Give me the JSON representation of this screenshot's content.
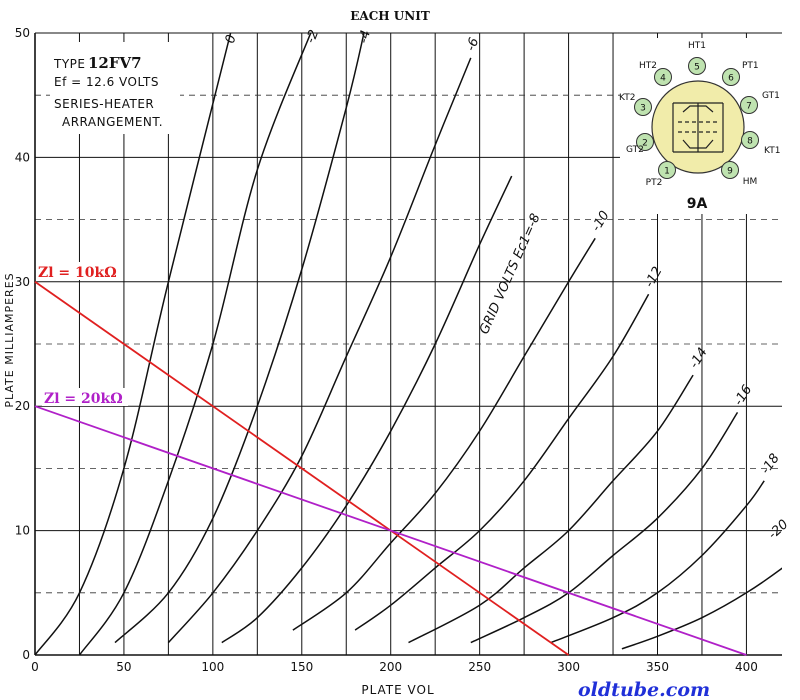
{
  "chart_data": {
    "type": "line",
    "title": "EACH UNIT",
    "xlabel": "PLATE VOL",
    "ylabel": "PLATE MILLIAMPERES",
    "xlim": [
      0,
      400
    ],
    "ylim": [
      0,
      50
    ],
    "xticks": [
      0,
      50,
      100,
      150,
      200,
      250,
      300,
      350,
      400
    ],
    "yticks": [
      0,
      10,
      20,
      30,
      40,
      50
    ],
    "grid": true,
    "series_caption": "GRID VOLTS Ec1=-8",
    "series": [
      {
        "label": "0",
        "points": [
          [
            0,
            0
          ],
          [
            25,
            5
          ],
          [
            50,
            15
          ],
          [
            75,
            30
          ],
          [
            110,
            50
          ]
        ]
      },
      {
        "label": "-2",
        "points": [
          [
            25,
            0
          ],
          [
            50,
            5
          ],
          [
            75,
            14
          ],
          [
            100,
            25
          ],
          [
            125,
            39
          ],
          [
            155,
            50
          ]
        ]
      },
      {
        "label": "-4",
        "points": [
          [
            45,
            1
          ],
          [
            75,
            5
          ],
          [
            100,
            11
          ],
          [
            125,
            20
          ],
          [
            150,
            31
          ],
          [
            175,
            44
          ],
          [
            185,
            50
          ]
        ]
      },
      {
        "label": "-6",
        "points": [
          [
            75,
            1
          ],
          [
            100,
            5
          ],
          [
            125,
            10
          ],
          [
            150,
            16
          ],
          [
            175,
            24
          ],
          [
            200,
            32
          ],
          [
            225,
            41
          ],
          [
            245,
            48
          ]
        ]
      },
      {
        "label": "-8",
        "points": [
          [
            105,
            1
          ],
          [
            125,
            3
          ],
          [
            150,
            7
          ],
          [
            175,
            12
          ],
          [
            200,
            18
          ],
          [
            225,
            25
          ],
          [
            250,
            33
          ],
          [
            268,
            38.5
          ]
        ]
      },
      {
        "label": "-10",
        "points": [
          [
            145,
            2
          ],
          [
            175,
            5
          ],
          [
            200,
            9
          ],
          [
            225,
            13
          ],
          [
            250,
            18
          ],
          [
            275,
            24
          ],
          [
            300,
            30
          ],
          [
            315,
            33.5
          ]
        ]
      },
      {
        "label": "-12",
        "points": [
          [
            180,
            2
          ],
          [
            200,
            4
          ],
          [
            225,
            7
          ],
          [
            250,
            10
          ],
          [
            275,
            14
          ],
          [
            300,
            19
          ],
          [
            325,
            24
          ],
          [
            345,
            29
          ]
        ]
      },
      {
        "label": "-14",
        "points": [
          [
            210,
            1
          ],
          [
            250,
            4
          ],
          [
            275,
            7
          ],
          [
            300,
            10
          ],
          [
            325,
            14
          ],
          [
            350,
            18
          ],
          [
            370,
            22.5
          ]
        ]
      },
      {
        "label": "-16",
        "points": [
          [
            245,
            1
          ],
          [
            275,
            3
          ],
          [
            300,
            5
          ],
          [
            325,
            8
          ],
          [
            350,
            11
          ],
          [
            375,
            15
          ],
          [
            395,
            19.5
          ]
        ]
      },
      {
        "label": "-18",
        "points": [
          [
            290,
            1
          ],
          [
            325,
            3
          ],
          [
            350,
            5
          ],
          [
            375,
            8
          ],
          [
            400,
            12
          ],
          [
            410,
            14
          ]
        ]
      },
      {
        "label": "-20",
        "points": [
          [
            330,
            0.5
          ],
          [
            350,
            1.5
          ],
          [
            375,
            3
          ],
          [
            400,
            5
          ],
          [
            425,
            7.5
          ],
          [
            435,
            8.8
          ]
        ]
      }
    ],
    "load_lines": [
      {
        "name": "Zl = 10kΩ",
        "color": "#e02020",
        "points": [
          [
            0,
            30
          ],
          [
            300,
            0
          ]
        ]
      },
      {
        "name": "Zl = 20kΩ",
        "color": "#b020c8",
        "points": [
          [
            0,
            20
          ],
          [
            400,
            0
          ]
        ]
      }
    ]
  },
  "tube_info": {
    "lines": [
      "TYPE",
      "12FV7",
      "Ef = 12.6 VOLTS",
      "SERIES-HEATER",
      "ARRANGEMENT."
    ]
  },
  "basing": {
    "label": "9A",
    "pins": [
      {
        "num": "1",
        "label": "PT2"
      },
      {
        "num": "2",
        "label": "GT2"
      },
      {
        "num": "3",
        "label": "KT2"
      },
      {
        "num": "4",
        "label": "HT2"
      },
      {
        "num": "5",
        "label": "HT1"
      },
      {
        "num": "6",
        "label": "PT1"
      },
      {
        "num": "7",
        "label": "GT1"
      },
      {
        "num": "8",
        "label": "KT1"
      },
      {
        "num": "9",
        "label": "HM"
      }
    ]
  },
  "watermark": "oldtube.com",
  "colors": {
    "load_10k": "#e02020",
    "load_20k": "#b020c8",
    "watermark": "#2030d8",
    "pin_fill": "#bfe3b0",
    "socket_fill": "#f1ecaa"
  }
}
